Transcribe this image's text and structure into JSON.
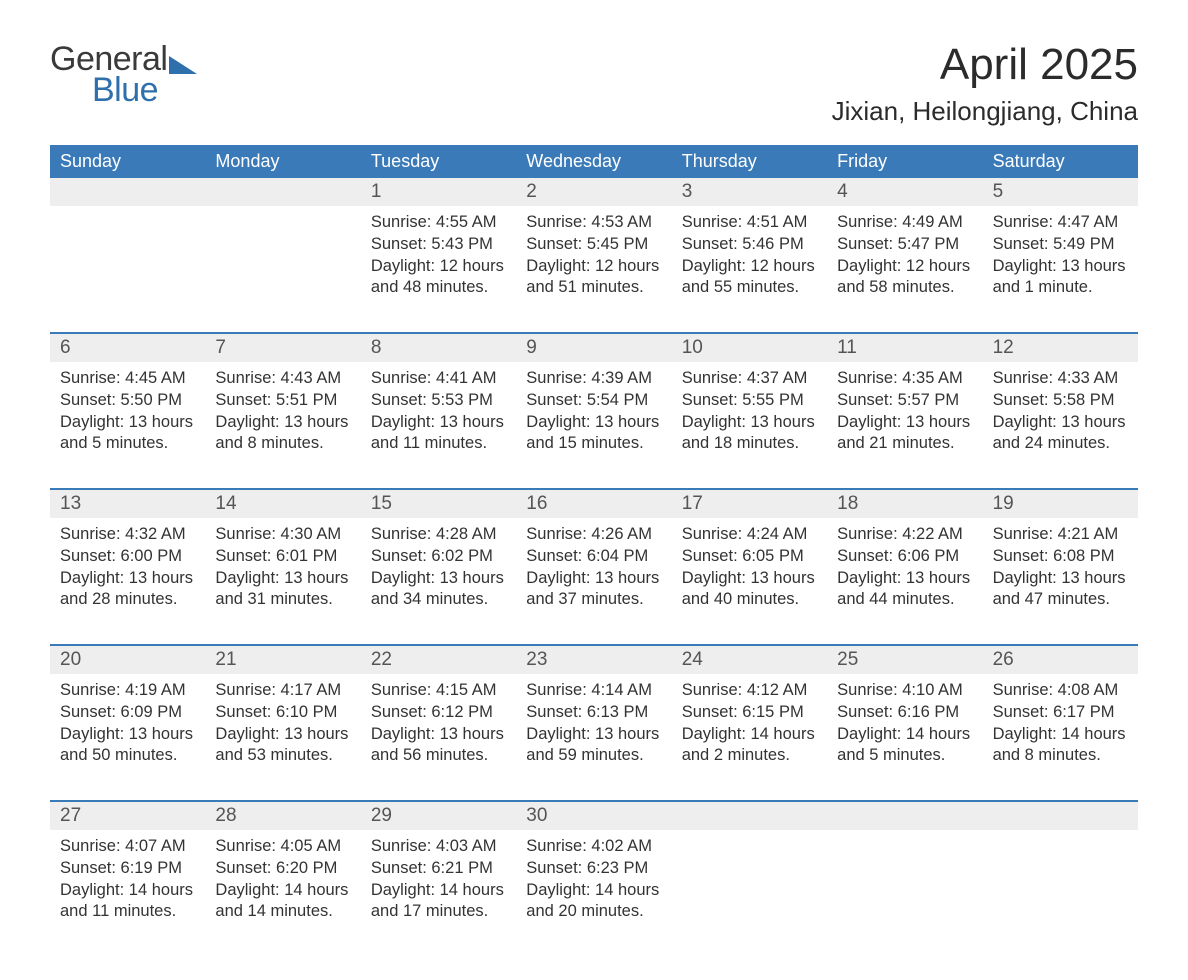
{
  "colors": {
    "header_bg": "#3a7ab8",
    "header_text": "#ffffff",
    "daynum_bg": "#eeeeee",
    "daynum_text": "#555555",
    "body_text": "#333333",
    "week_border": "#3a7ab8",
    "page_bg": "#ffffff",
    "logo_gray": "#3a3a3a",
    "logo_blue": "#2f6fab"
  },
  "typography": {
    "month_title_fontsize": 44,
    "location_fontsize": 26,
    "weekday_fontsize": 18,
    "daynum_fontsize": 19,
    "body_fontsize": 16.5,
    "font_family": "Segoe UI"
  },
  "layout": {
    "columns": 7,
    "rows": 5,
    "aspect_w": 1188,
    "aspect_h": 918
  },
  "logo": {
    "word1": "General",
    "word2": "Blue"
  },
  "title": "April 2025",
  "location": "Jixian, Heilongjiang, China",
  "weekdays": [
    "Sunday",
    "Monday",
    "Tuesday",
    "Wednesday",
    "Thursday",
    "Friday",
    "Saturday"
  ],
  "labels": {
    "sunrise": "Sunrise:",
    "sunset": "Sunset:",
    "daylight": "Daylight:"
  },
  "weeks": [
    [
      null,
      null,
      {
        "n": "1",
        "sunrise": "4:55 AM",
        "sunset": "5:43 PM",
        "daylight1": "12 hours",
        "daylight2": "and 48 minutes."
      },
      {
        "n": "2",
        "sunrise": "4:53 AM",
        "sunset": "5:45 PM",
        "daylight1": "12 hours",
        "daylight2": "and 51 minutes."
      },
      {
        "n": "3",
        "sunrise": "4:51 AM",
        "sunset": "5:46 PM",
        "daylight1": "12 hours",
        "daylight2": "and 55 minutes."
      },
      {
        "n": "4",
        "sunrise": "4:49 AM",
        "sunset": "5:47 PM",
        "daylight1": "12 hours",
        "daylight2": "and 58 minutes."
      },
      {
        "n": "5",
        "sunrise": "4:47 AM",
        "sunset": "5:49 PM",
        "daylight1": "13 hours",
        "daylight2": "and 1 minute."
      }
    ],
    [
      {
        "n": "6",
        "sunrise": "4:45 AM",
        "sunset": "5:50 PM",
        "daylight1": "13 hours",
        "daylight2": "and 5 minutes."
      },
      {
        "n": "7",
        "sunrise": "4:43 AM",
        "sunset": "5:51 PM",
        "daylight1": "13 hours",
        "daylight2": "and 8 minutes."
      },
      {
        "n": "8",
        "sunrise": "4:41 AM",
        "sunset": "5:53 PM",
        "daylight1": "13 hours",
        "daylight2": "and 11 minutes."
      },
      {
        "n": "9",
        "sunrise": "4:39 AM",
        "sunset": "5:54 PM",
        "daylight1": "13 hours",
        "daylight2": "and 15 minutes."
      },
      {
        "n": "10",
        "sunrise": "4:37 AM",
        "sunset": "5:55 PM",
        "daylight1": "13 hours",
        "daylight2": "and 18 minutes."
      },
      {
        "n": "11",
        "sunrise": "4:35 AM",
        "sunset": "5:57 PM",
        "daylight1": "13 hours",
        "daylight2": "and 21 minutes."
      },
      {
        "n": "12",
        "sunrise": "4:33 AM",
        "sunset": "5:58 PM",
        "daylight1": "13 hours",
        "daylight2": "and 24 minutes."
      }
    ],
    [
      {
        "n": "13",
        "sunrise": "4:32 AM",
        "sunset": "6:00 PM",
        "daylight1": "13 hours",
        "daylight2": "and 28 minutes."
      },
      {
        "n": "14",
        "sunrise": "4:30 AM",
        "sunset": "6:01 PM",
        "daylight1": "13 hours",
        "daylight2": "and 31 minutes."
      },
      {
        "n": "15",
        "sunrise": "4:28 AM",
        "sunset": "6:02 PM",
        "daylight1": "13 hours",
        "daylight2": "and 34 minutes."
      },
      {
        "n": "16",
        "sunrise": "4:26 AM",
        "sunset": "6:04 PM",
        "daylight1": "13 hours",
        "daylight2": "and 37 minutes."
      },
      {
        "n": "17",
        "sunrise": "4:24 AM",
        "sunset": "6:05 PM",
        "daylight1": "13 hours",
        "daylight2": "and 40 minutes."
      },
      {
        "n": "18",
        "sunrise": "4:22 AM",
        "sunset": "6:06 PM",
        "daylight1": "13 hours",
        "daylight2": "and 44 minutes."
      },
      {
        "n": "19",
        "sunrise": "4:21 AM",
        "sunset": "6:08 PM",
        "daylight1": "13 hours",
        "daylight2": "and 47 minutes."
      }
    ],
    [
      {
        "n": "20",
        "sunrise": "4:19 AM",
        "sunset": "6:09 PM",
        "daylight1": "13 hours",
        "daylight2": "and 50 minutes."
      },
      {
        "n": "21",
        "sunrise": "4:17 AM",
        "sunset": "6:10 PM",
        "daylight1": "13 hours",
        "daylight2": "and 53 minutes."
      },
      {
        "n": "22",
        "sunrise": "4:15 AM",
        "sunset": "6:12 PM",
        "daylight1": "13 hours",
        "daylight2": "and 56 minutes."
      },
      {
        "n": "23",
        "sunrise": "4:14 AM",
        "sunset": "6:13 PM",
        "daylight1": "13 hours",
        "daylight2": "and 59 minutes."
      },
      {
        "n": "24",
        "sunrise": "4:12 AM",
        "sunset": "6:15 PM",
        "daylight1": "14 hours",
        "daylight2": "and 2 minutes."
      },
      {
        "n": "25",
        "sunrise": "4:10 AM",
        "sunset": "6:16 PM",
        "daylight1": "14 hours",
        "daylight2": "and 5 minutes."
      },
      {
        "n": "26",
        "sunrise": "4:08 AM",
        "sunset": "6:17 PM",
        "daylight1": "14 hours",
        "daylight2": "and 8 minutes."
      }
    ],
    [
      {
        "n": "27",
        "sunrise": "4:07 AM",
        "sunset": "6:19 PM",
        "daylight1": "14 hours",
        "daylight2": "and 11 minutes."
      },
      {
        "n": "28",
        "sunrise": "4:05 AM",
        "sunset": "6:20 PM",
        "daylight1": "14 hours",
        "daylight2": "and 14 minutes."
      },
      {
        "n": "29",
        "sunrise": "4:03 AM",
        "sunset": "6:21 PM",
        "daylight1": "14 hours",
        "daylight2": "and 17 minutes."
      },
      {
        "n": "30",
        "sunrise": "4:02 AM",
        "sunset": "6:23 PM",
        "daylight1": "14 hours",
        "daylight2": "and 20 minutes."
      },
      null,
      null,
      null
    ]
  ]
}
